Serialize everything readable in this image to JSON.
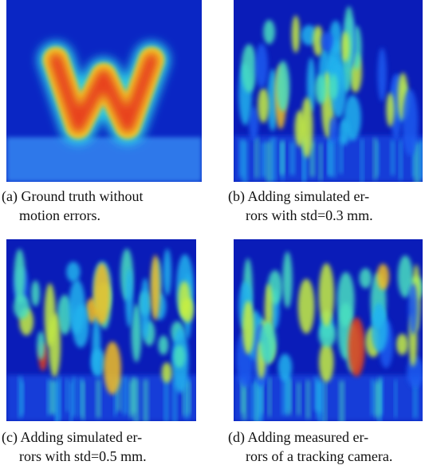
{
  "panels": [
    {
      "caption_lines": [
        "(a) Ground truth without",
        "motion errors."
      ]
    },
    {
      "caption_lines": [
        "(b) Adding simulated er-",
        "rors with std=0.3 mm."
      ]
    },
    {
      "caption_lines": [
        "(c) Adding simulated er-",
        "rors with std=0.5 mm."
      ]
    },
    {
      "caption_lines": [
        "(d) Adding measured er-",
        "rors of a tracking camera."
      ]
    }
  ]
}
